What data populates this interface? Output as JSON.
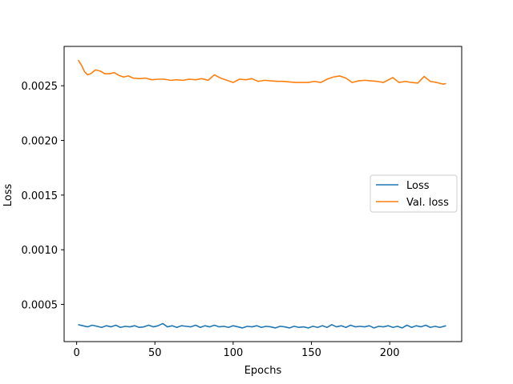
{
  "chart_data": {
    "type": "line",
    "title": "",
    "xlabel": "Epochs",
    "ylabel": "Loss",
    "xlim": [
      -8,
      246
    ],
    "ylim": [
      0.00016,
      0.00286
    ],
    "xticks": [
      0,
      50,
      100,
      150,
      200
    ],
    "xtick_labels": [
      "0",
      "50",
      "100",
      "150",
      "200"
    ],
    "yticks": [
      0.0005,
      0.001,
      0.0015,
      0.002,
      0.0025
    ],
    "ytick_labels": [
      "0.0005",
      "0.0010",
      "0.0015",
      "0.0020",
      "0.0025"
    ],
    "grid": false,
    "legend_position": "center-right",
    "series": [
      {
        "name": "Loss",
        "color": "#1f77b4",
        "x": [
          1,
          4,
          7,
          10,
          13,
          16,
          19,
          22,
          25,
          28,
          31,
          34,
          37,
          40,
          43,
          46,
          49,
          52,
          55,
          58,
          61,
          64,
          67,
          70,
          73,
          76,
          79,
          82,
          85,
          88,
          91,
          94,
          97,
          100,
          103,
          106,
          109,
          112,
          115,
          118,
          121,
          124,
          127,
          130,
          133,
          136,
          139,
          142,
          145,
          148,
          151,
          154,
          157,
          160,
          163,
          166,
          169,
          172,
          175,
          178,
          181,
          184,
          187,
          190,
          193,
          196,
          199,
          202,
          205,
          208,
          211,
          214,
          217,
          220,
          223,
          226,
          229,
          232,
          236
        ],
        "y": [
          0.000315,
          0.000305,
          0.000295,
          0.00031,
          0.0003,
          0.00029,
          0.000305,
          0.000295,
          0.00031,
          0.00029,
          0.0003,
          0.000295,
          0.000305,
          0.00029,
          0.000295,
          0.00031,
          0.000295,
          0.000305,
          0.000325,
          0.000295,
          0.000305,
          0.00029,
          0.000305,
          0.0003,
          0.000295,
          0.00031,
          0.00029,
          0.000305,
          0.000295,
          0.00031,
          0.000295,
          0.0003,
          0.00029,
          0.000305,
          0.000295,
          0.000285,
          0.0003,
          0.000295,
          0.000305,
          0.00029,
          0.0003,
          0.000295,
          0.000285,
          0.0003,
          0.000295,
          0.000285,
          0.0003,
          0.00029,
          0.000295,
          0.000285,
          0.0003,
          0.00029,
          0.000305,
          0.00029,
          0.000315,
          0.000295,
          0.000305,
          0.00029,
          0.00031,
          0.000295,
          0.0003,
          0.000295,
          0.000305,
          0.000285,
          0.0003,
          0.000295,
          0.000305,
          0.00029,
          0.0003,
          0.000285,
          0.00031,
          0.00029,
          0.000305,
          0.000295,
          0.00031,
          0.00029,
          0.0003,
          0.00029,
          0.000305
        ]
      },
      {
        "name": "Val. loss",
        "color": "#ff7f0e",
        "x": [
          1,
          3,
          5,
          7,
          9,
          12,
          15,
          18,
          21,
          24,
          27,
          30,
          33,
          36,
          40,
          44,
          48,
          52,
          56,
          60,
          64,
          68,
          72,
          76,
          80,
          84,
          88,
          92,
          96,
          100,
          104,
          108,
          112,
          116,
          120,
          124,
          128,
          132,
          136,
          140,
          144,
          148,
          152,
          156,
          160,
          164,
          168,
          172,
          176,
          180,
          184,
          188,
          192,
          196,
          200,
          202,
          206,
          210,
          214,
          218,
          222,
          226,
          230,
          234,
          236
        ],
        "y": [
          0.002735,
          0.00269,
          0.00263,
          0.0026,
          0.00261,
          0.002645,
          0.002635,
          0.00261,
          0.00261,
          0.00262,
          0.002595,
          0.00258,
          0.00259,
          0.00257,
          0.002565,
          0.00257,
          0.002555,
          0.00256,
          0.00256,
          0.00255,
          0.002555,
          0.00255,
          0.00256,
          0.002555,
          0.002565,
          0.00255,
          0.0026,
          0.00257,
          0.00255,
          0.00253,
          0.00256,
          0.002555,
          0.002565,
          0.00254,
          0.00255,
          0.002545,
          0.00254,
          0.00254,
          0.002535,
          0.00253,
          0.00253,
          0.00253,
          0.00254,
          0.00253,
          0.00256,
          0.00258,
          0.00259,
          0.00257,
          0.00253,
          0.002545,
          0.00255,
          0.002545,
          0.00254,
          0.00253,
          0.00256,
          0.002575,
          0.00253,
          0.00254,
          0.00253,
          0.002525,
          0.002585,
          0.00254,
          0.00253,
          0.002515,
          0.00252
        ]
      }
    ]
  }
}
